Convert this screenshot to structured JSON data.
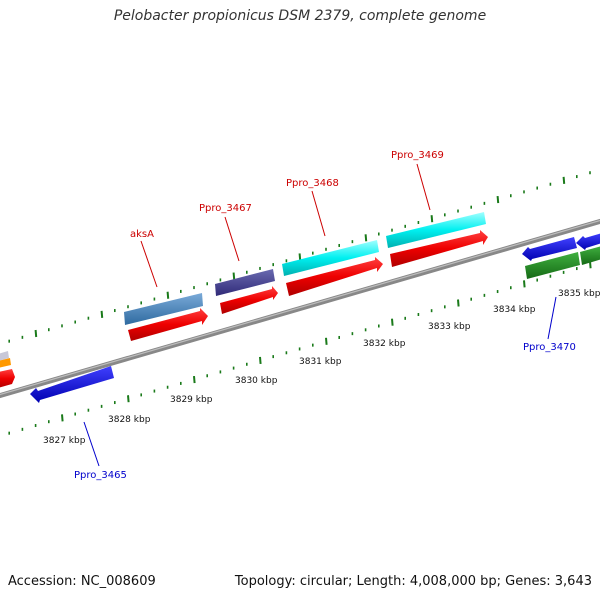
{
  "title": "Pelobacter propionicus DSM 2379, complete genome",
  "footer": {
    "accession": "Accession: NC_008609",
    "topology": "Topology: circular; Length: 4,008,000 bp; Genes: 3,643"
  },
  "colors": {
    "backbone": "#808080",
    "tick": "#1a7a1a",
    "forward_label": "#cc0000",
    "reverse_label": "#0000cc"
  },
  "scale_labels": [
    "3827 kbp",
    "3828 kbp",
    "3829 kbp",
    "3830 kbp",
    "3831 kbp",
    "3832 kbp",
    "3833 kbp",
    "3834 kbp",
    "3835 kbp"
  ],
  "gene_labels": [
    {
      "text": "aksA",
      "strand": "forward"
    },
    {
      "text": "Ppro_3467",
      "strand": "forward"
    },
    {
      "text": "Ppro_3468",
      "strand": "forward"
    },
    {
      "text": "Ppro_3469",
      "strand": "forward"
    },
    {
      "text": "Ppro_3465",
      "strand": "reverse"
    },
    {
      "text": "Ppro_3470",
      "strand": "reverse"
    }
  ]
}
